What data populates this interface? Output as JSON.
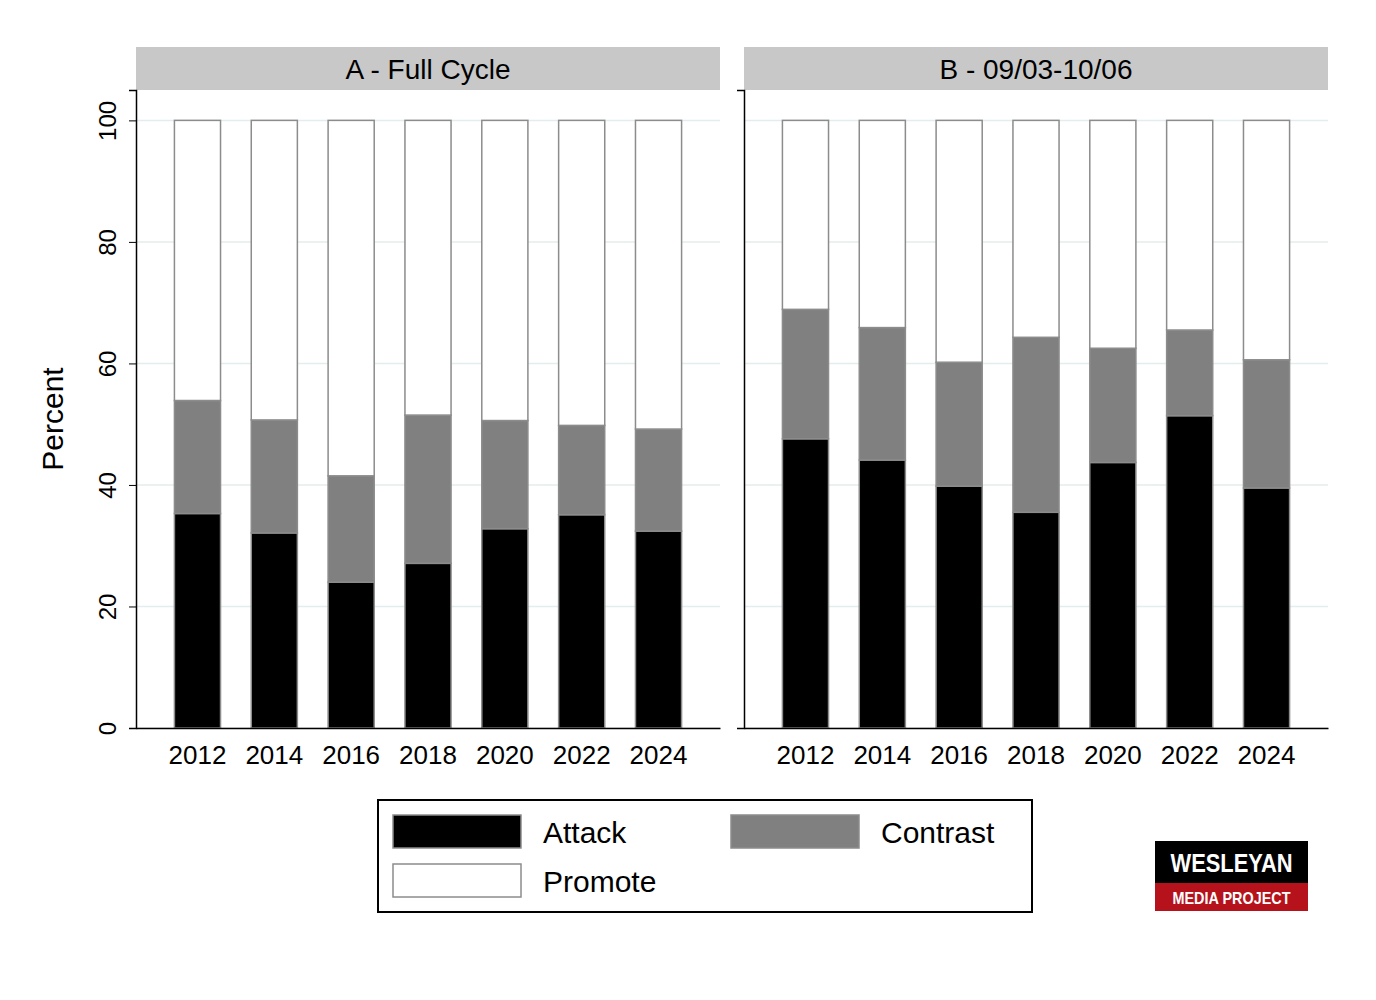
{
  "chart_data": [
    {
      "type": "bar",
      "title": "A - Full Cycle",
      "y_label": "Percent",
      "stacked": true,
      "grid": true,
      "legend": "bottom",
      "categories": [
        "2012",
        "2014",
        "2016",
        "2018",
        "2020",
        "2022",
        "2024"
      ],
      "ylim": [
        0,
        105
      ],
      "yticks": [
        0,
        20,
        40,
        60,
        80,
        100
      ],
      "series": [
        {
          "name": "Attack",
          "color": "#000000",
          "values": [
            35.3,
            32.1,
            24.0,
            27.1,
            32.8,
            35.1,
            32.4
          ]
        },
        {
          "name": "Contrast",
          "color": "#808080",
          "values": [
            18.6,
            18.6,
            17.5,
            24.4,
            17.8,
            14.7,
            16.8
          ]
        },
        {
          "name": "Promote",
          "color": "#ffffff",
          "values": [
            46.1,
            49.3,
            58.5,
            48.5,
            49.4,
            50.2,
            50.8
          ]
        }
      ]
    },
    {
      "type": "bar",
      "title": "B - 09/03-10/06",
      "stacked": true,
      "grid": true,
      "tick_labels": "x",
      "categories": [
        "2012",
        "2014",
        "2016",
        "2018",
        "2020",
        "2022",
        "2024"
      ],
      "ylim": [
        0,
        105
      ],
      "yticks": [
        0,
        20,
        40,
        60,
        80,
        100
      ],
      "series": [
        {
          "name": "Attack",
          "color": "#000000",
          "values": [
            47.6,
            44.1,
            39.8,
            35.5,
            43.7,
            51.4,
            39.5
          ]
        },
        {
          "name": "Contrast",
          "color": "#808080",
          "values": [
            21.3,
            21.8,
            20.4,
            28.8,
            18.8,
            14.1,
            21.1
          ]
        },
        {
          "name": "Promote",
          "color": "#ffffff",
          "values": [
            31.1,
            34.1,
            39.8,
            35.7,
            37.5,
            34.5,
            39.4
          ]
        }
      ]
    }
  ],
  "logo": {
    "lines": [
      "WESLEYAN",
      "MEDIA PROJECT"
    ]
  }
}
